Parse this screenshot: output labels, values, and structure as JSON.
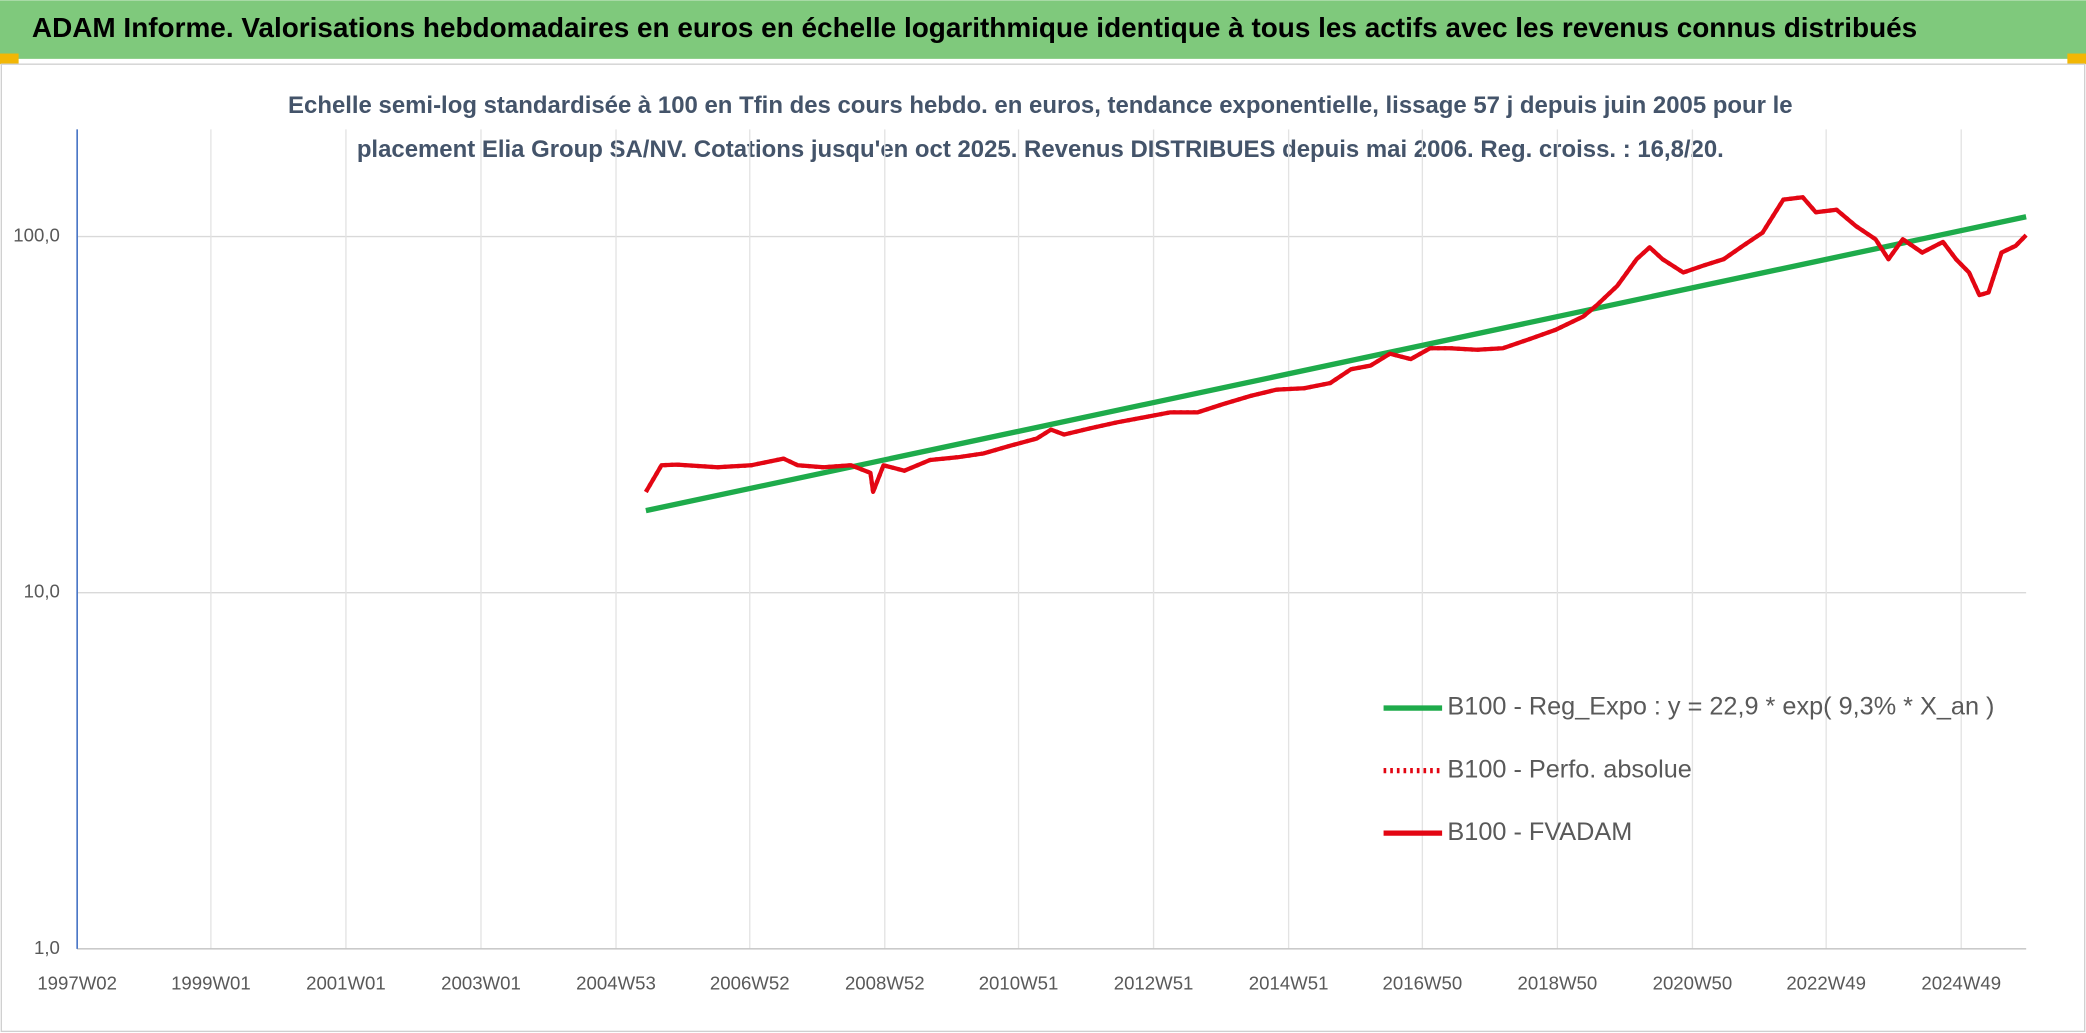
{
  "chart_data": {
    "type": "line",
    "header": "ADAM Informe. Valorisations hebdomadaires en euros en échelle logarithmique identique à tous les actifs avec les revenus connus distribués",
    "subtitle": [
      "Echelle semi-log standardisée à 100 en Tfin des cours hebdo. en euros, tendance exponentielle, lissage 57 j depuis juin 2005 pour le",
      "placement Elia Group SA/NV. Cotations jusqu'en oct 2025. Revenus DISTRIBUES depuis mai 2006. Reg. croiss. : 16,8/20."
    ],
    "xlim": [
      "1997W02",
      "2025W47"
    ],
    "xticks": [
      "1997W02",
      "1999W01",
      "2001W01",
      "2003W01",
      "2004W53",
      "2006W52",
      "2008W52",
      "2010W51",
      "2012W51",
      "2014W51",
      "2016W50",
      "2018W50",
      "2020W50",
      "2022W49",
      "2024W49"
    ],
    "ylim": [
      1,
      200
    ],
    "yticks": [
      {
        "value": 1,
        "label": "1,0"
      },
      {
        "value": 10,
        "label": "10,0"
      },
      {
        "value": 100,
        "label": "100,0"
      }
    ],
    "log_scale": true,
    "grid": true,
    "legend": "right",
    "series": [
      {
        "name": "B100 - Reg_Expo : y = 22,9 * exp( 9,3% *  X_an )",
        "color": "#1eab4b",
        "line_style": "solid",
        "x": [
          "2005W24",
          "2025W47"
        ],
        "values": [
          17.0,
          113.7
        ]
      },
      {
        "name": "B100 - Perfo. absolue",
        "color": "#e30613",
        "line_style": "dotted",
        "x": [
          "2005W24",
          "2005W36",
          "2005W48",
          "2006W27",
          "2007W01",
          "2007W26",
          "2007W37",
          "2008W05",
          "2008W26",
          "2008W41",
          "2008W43",
          "2008W51",
          "2009W15",
          "2009W35",
          "2010W04",
          "2010W24",
          "2010W45",
          "2011W13",
          "2011W24",
          "2011W34",
          "2012W03",
          "2012W23",
          "2012W44",
          "2013W12",
          "2013W33",
          "2014W01",
          "2014W22",
          "2014W42",
          "2015W11",
          "2015W31",
          "2015W47",
          "2016W10",
          "2016W25",
          "2016W41",
          "2017W04",
          "2017W19",
          "2017W40",
          "2018W08",
          "2018W29",
          "2018W49",
          "2019W18",
          "2019W28",
          "2019W44",
          "2020W07",
          "2020W17",
          "2020W27",
          "2020W43",
          "2021W06",
          "2021W22",
          "2021W37",
          "2021W52",
          "2022W16",
          "2022W31",
          "2022W41",
          "2023W05",
          "2023W20",
          "2023W35",
          "2023W45",
          "2024W04",
          "2024W19",
          "2024W35",
          "2024W45",
          "2025W03",
          "2025W11",
          "2025W18",
          "2025W28",
          "2025W39",
          "2025W47"
        ],
        "values": [
          19.2,
          22.8,
          22.9,
          22.5,
          22.8,
          23.8,
          22.8,
          22.5,
          22.8,
          21.7,
          19.2,
          22.8,
          22.0,
          23.6,
          24.0,
          24.6,
          25.9,
          27.1,
          28.7,
          27.8,
          29.0,
          30.1,
          31.1,
          32.1,
          32.1,
          33.9,
          35.7,
          37.2,
          37.5,
          38.8,
          42.4,
          43.4,
          46.9,
          45.3,
          48.6,
          48.6,
          48.1,
          48.6,
          51.6,
          54.8,
          59.7,
          64.0,
          72.7,
          86.4,
          93.3,
          86.4,
          79.3,
          82.8,
          86.4,
          94.2,
          102.6,
          127,
          129,
          117,
          119,
          107,
          98.3,
          86.4,
          98.3,
          90.2,
          96.6,
          86.4,
          79.3,
          68.5,
          69.7,
          90.2,
          94.2,
          100.9
        ]
      },
      {
        "name": "B100 - FVADAM",
        "color": "#e30613",
        "line_style": "solid",
        "x": [
          "2005W24",
          "2005W36",
          "2005W48",
          "2006W27",
          "2007W01",
          "2007W26",
          "2007W37",
          "2008W05",
          "2008W26",
          "2008W41",
          "2008W43",
          "2008W51",
          "2009W15",
          "2009W35",
          "2010W04",
          "2010W24",
          "2010W45",
          "2011W13",
          "2011W24",
          "2011W34",
          "2012W03",
          "2012W23",
          "2012W44",
          "2013W12",
          "2013W33",
          "2014W01",
          "2014W22",
          "2014W42",
          "2015W11",
          "2015W31",
          "2015W47",
          "2016W10",
          "2016W25",
          "2016W41",
          "2017W04",
          "2017W19",
          "2017W40",
          "2018W08",
          "2018W29",
          "2018W49",
          "2019W18",
          "2019W28",
          "2019W44",
          "2020W07",
          "2020W17",
          "2020W27",
          "2020W43",
          "2021W06",
          "2021W22",
          "2021W37",
          "2021W52",
          "2022W16",
          "2022W31",
          "2022W41",
          "2023W05",
          "2023W20",
          "2023W35",
          "2023W45",
          "2024W04",
          "2024W19",
          "2024W35",
          "2024W45",
          "2025W03",
          "2025W11",
          "2025W18",
          "2025W28",
          "2025W39",
          "2025W47"
        ],
        "values": [
          19.2,
          22.8,
          22.9,
          22.5,
          22.8,
          23.8,
          22.8,
          22.5,
          22.8,
          21.7,
          19.2,
          22.8,
          22.0,
          23.6,
          24.0,
          24.6,
          25.9,
          27.1,
          28.7,
          27.8,
          29.0,
          30.1,
          31.1,
          32.1,
          32.1,
          33.9,
          35.7,
          37.2,
          37.5,
          38.8,
          42.4,
          43.4,
          46.9,
          45.3,
          48.6,
          48.6,
          48.1,
          48.6,
          51.6,
          54.8,
          59.7,
          64.0,
          72.7,
          86.4,
          93.3,
          86.4,
          79.3,
          82.8,
          86.4,
          94.2,
          102.6,
          127,
          129,
          117,
          119,
          107,
          98.3,
          86.4,
          98.3,
          90.2,
          96.6,
          86.4,
          79.3,
          68.5,
          69.7,
          90.2,
          94.2,
          100.9
        ]
      }
    ]
  }
}
